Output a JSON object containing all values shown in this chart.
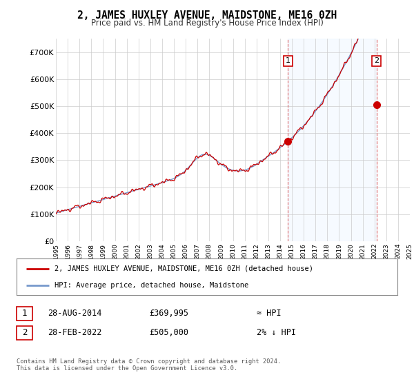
{
  "title": "2, JAMES HUXLEY AVENUE, MAIDSTONE, ME16 0ZH",
  "subtitle": "Price paid vs. HM Land Registry's House Price Index (HPI)",
  "background_color": "#ffffff",
  "plot_bg_color": "#ffffff",
  "shade_color": "#ddeeff",
  "grid_color": "#cccccc",
  "line_color_red": "#cc0000",
  "line_color_blue": "#7799cc",
  "ylim": [
    0,
    750000
  ],
  "yticks": [
    0,
    100000,
    200000,
    300000,
    400000,
    500000,
    600000,
    700000
  ],
  "ytick_labels": [
    "£0",
    "£100K",
    "£200K",
    "£300K",
    "£400K",
    "£500K",
    "£600K",
    "£700K"
  ],
  "sale1_year": 2014.67,
  "sale1_price": 369995,
  "sale2_year": 2022.17,
  "sale2_price": 505000,
  "legend_label_red": "2, JAMES HUXLEY AVENUE, MAIDSTONE, ME16 0ZH (detached house)",
  "legend_label_blue": "HPI: Average price, detached house, Maidstone",
  "note1_label": "1",
  "note1_date": "28-AUG-2014",
  "note1_price": "£369,995",
  "note1_hpi": "≈ HPI",
  "note2_label": "2",
  "note2_date": "28-FEB-2022",
  "note2_price": "£505,000",
  "note2_hpi": "2% ↓ HPI",
  "footer": "Contains HM Land Registry data © Crown copyright and database right 2024.\nThis data is licensed under the Open Government Licence v3.0.",
  "xstart_year": 1995,
  "xend_year": 2025
}
